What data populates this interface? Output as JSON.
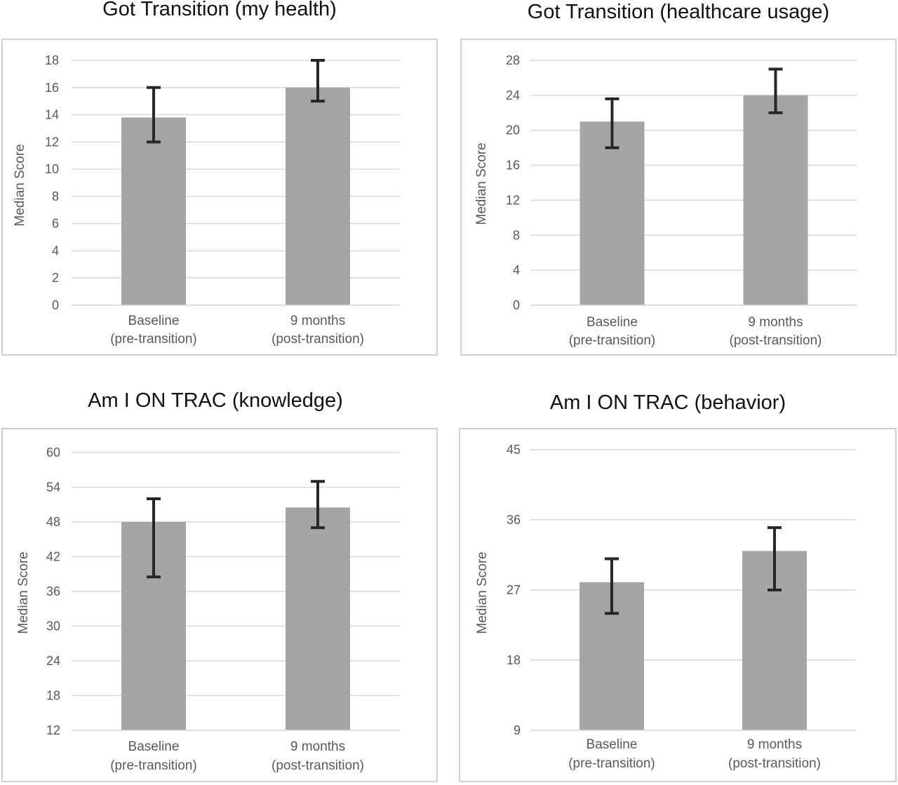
{
  "chart_data": [
    {
      "type": "bar",
      "title": "Got Transition (my health)",
      "ylabel": "Median Score",
      "xlabel": "",
      "categories": [
        [
          "Baseline",
          "(pre-transition)"
        ],
        [
          "9 months",
          "(post-transition)"
        ]
      ],
      "values": [
        13.8,
        16
      ],
      "error_low": [
        12,
        15
      ],
      "error_high": [
        16,
        18
      ],
      "ylim": [
        0,
        18
      ],
      "yticks": [
        0,
        2,
        4,
        6,
        8,
        10,
        12,
        14,
        16,
        18
      ],
      "grid": true,
      "bar_color": "#a5a5a5",
      "error_color": "#262626"
    },
    {
      "type": "bar",
      "title": "Got Transition (healthcare usage)",
      "ylabel": "Median Score",
      "xlabel": "",
      "categories": [
        [
          "Baseline",
          "(pre-transition)"
        ],
        [
          "9 months",
          "(post-transition)"
        ]
      ],
      "values": [
        21,
        24
      ],
      "error_low": [
        18,
        22
      ],
      "error_high": [
        23.6,
        27
      ],
      "ylim": [
        0,
        28
      ],
      "yticks": [
        0,
        4,
        8,
        12,
        16,
        20,
        24,
        28
      ],
      "grid": true,
      "bar_color": "#a5a5a5",
      "error_color": "#262626"
    },
    {
      "type": "bar",
      "title": "Am I ON TRAC (knowledge)",
      "ylabel": "Median Score",
      "xlabel": "",
      "categories": [
        [
          "Baseline",
          "(pre-transition)"
        ],
        [
          "9 months",
          "(post-transition)"
        ]
      ],
      "values": [
        48,
        50.5
      ],
      "error_low": [
        38.5,
        47
      ],
      "error_high": [
        52,
        55
      ],
      "ylim": [
        12,
        60
      ],
      "yticks": [
        12,
        18,
        24,
        30,
        36,
        42,
        48,
        54,
        60
      ],
      "grid": true,
      "bar_color": "#a5a5a5",
      "error_color": "#262626"
    },
    {
      "type": "bar",
      "title": "Am I ON TRAC (behavior)",
      "ylabel": "Median Score",
      "xlabel": "",
      "categories": [
        [
          "Baseline",
          "(pre-transition)"
        ],
        [
          "9 months",
          "(post-transition)"
        ]
      ],
      "values": [
        28,
        32
      ],
      "error_low": [
        24,
        27
      ],
      "error_high": [
        31,
        35
      ],
      "ylim": [
        9,
        45
      ],
      "yticks": [
        9,
        18,
        27,
        36,
        45
      ],
      "grid": true,
      "bar_color": "#a5a5a5",
      "error_color": "#262626"
    }
  ]
}
